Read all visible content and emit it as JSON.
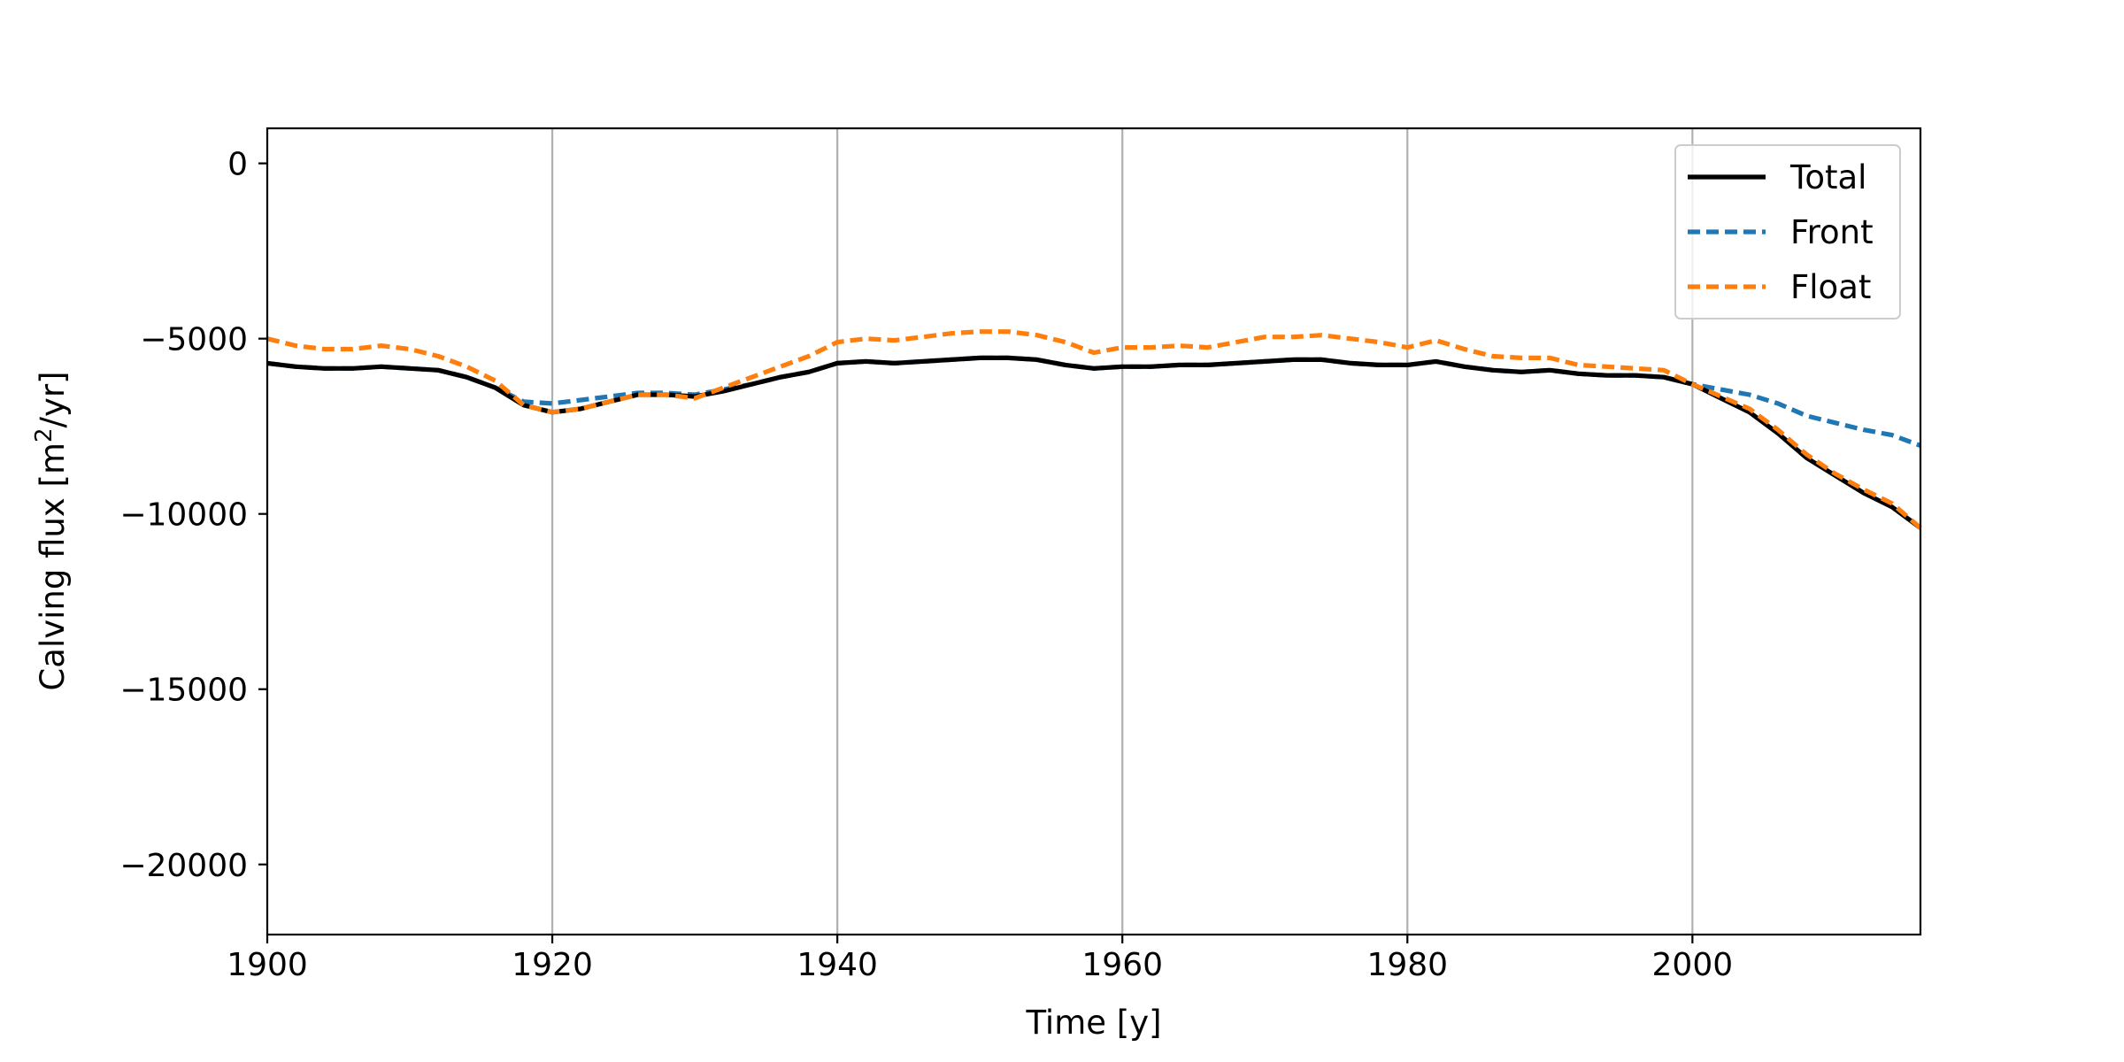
{
  "chart_data": {
    "type": "line",
    "title": "",
    "xlabel": "Time [y]",
    "ylabel_text": "Calving flux [m",
    "ylabel_sup": "2",
    "ylabel_suffix": "/yr]",
    "xlim": [
      1900,
      2016
    ],
    "ylim": [
      -22000,
      1000
    ],
    "xticks": [
      1900,
      1920,
      1940,
      1960,
      1980,
      2000
    ],
    "yticks": [
      0,
      -5000,
      -10000,
      -15000,
      -20000
    ],
    "xtick_labels": [
      "1900",
      "1920",
      "1940",
      "1960",
      "1980",
      "2000"
    ],
    "ytick_labels": [
      "0",
      "−5000",
      "−10000",
      "−15000",
      "−20000"
    ],
    "grid": "vertical",
    "legend_position": "top-right",
    "x": [
      1900,
      1902,
      1904,
      1906,
      1908,
      1910,
      1912,
      1914,
      1916,
      1918,
      1920,
      1922,
      1924,
      1926,
      1928,
      1930,
      1932,
      1934,
      1936,
      1938,
      1940,
      1942,
      1944,
      1946,
      1948,
      1950,
      1952,
      1954,
      1956,
      1958,
      1960,
      1962,
      1964,
      1966,
      1968,
      1970,
      1972,
      1974,
      1976,
      1978,
      1980,
      1982,
      1984,
      1986,
      1988,
      1990,
      1992,
      1994,
      1996,
      1998,
      2000,
      2002,
      2004,
      2006,
      2008,
      2010,
      2012,
      2014,
      2016
    ],
    "series": [
      {
        "name": "Total",
        "color": "#000000",
        "dash": "solid",
        "values": [
          -5700,
          -5800,
          -5850,
          -5850,
          -5800,
          -5850,
          -5900,
          -6100,
          -6400,
          -6900,
          -7100,
          -7000,
          -6800,
          -6600,
          -6600,
          -6650,
          -6500,
          -6300,
          -6100,
          -5950,
          -5700,
          -5650,
          -5700,
          -5650,
          -5600,
          -5550,
          -5550,
          -5600,
          -5750,
          -5850,
          -5800,
          -5800,
          -5750,
          -5750,
          -5700,
          -5650,
          -5600,
          -5600,
          -5700,
          -5750,
          -5750,
          -5650,
          -5800,
          -5900,
          -5950,
          -5900,
          -6000,
          -6050,
          -6050,
          -6100,
          -6300,
          -6700,
          -7100,
          -7700,
          -8400,
          -8900,
          -9400,
          -9800,
          -10400
        ]
      },
      {
        "name": "Front",
        "color": "#1f77b4",
        "dash": "dashed",
        "values": [
          -5700,
          -5800,
          -5850,
          -5850,
          -5800,
          -5850,
          -5900,
          -6100,
          -6400,
          -6800,
          -6850,
          -6750,
          -6650,
          -6550,
          -6550,
          -6600,
          -6450,
          -6300,
          -6100,
          -5950,
          -5700,
          -5650,
          -5700,
          -5650,
          -5600,
          -5550,
          -5550,
          -5600,
          -5750,
          -5850,
          -5800,
          -5800,
          -5750,
          -5750,
          -5700,
          -5650,
          -5600,
          -5600,
          -5700,
          -5750,
          -5750,
          -5650,
          -5800,
          -5900,
          -5950,
          -5900,
          -6000,
          -6050,
          -6050,
          -6100,
          -6300,
          -6450,
          -6600,
          -6850,
          -7200,
          -7400,
          -7600,
          -7750,
          -8050
        ]
      },
      {
        "name": "Float",
        "color": "#ff7f0e",
        "dash": "dashed",
        "values": [
          -5000,
          -5200,
          -5300,
          -5300,
          -5200,
          -5300,
          -5500,
          -5800,
          -6200,
          -6900,
          -7100,
          -7000,
          -6800,
          -6600,
          -6600,
          -6700,
          -6400,
          -6100,
          -5800,
          -5500,
          -5100,
          -5000,
          -5050,
          -4950,
          -4850,
          -4800,
          -4800,
          -4900,
          -5100,
          -5400,
          -5250,
          -5250,
          -5200,
          -5250,
          -5100,
          -4950,
          -4950,
          -4900,
          -5000,
          -5100,
          -5250,
          -5050,
          -5300,
          -5500,
          -5550,
          -5550,
          -5750,
          -5800,
          -5850,
          -5900,
          -6300,
          -6650,
          -7000,
          -7600,
          -8300,
          -8850,
          -9300,
          -9700,
          -10400
        ]
      }
    ]
  }
}
